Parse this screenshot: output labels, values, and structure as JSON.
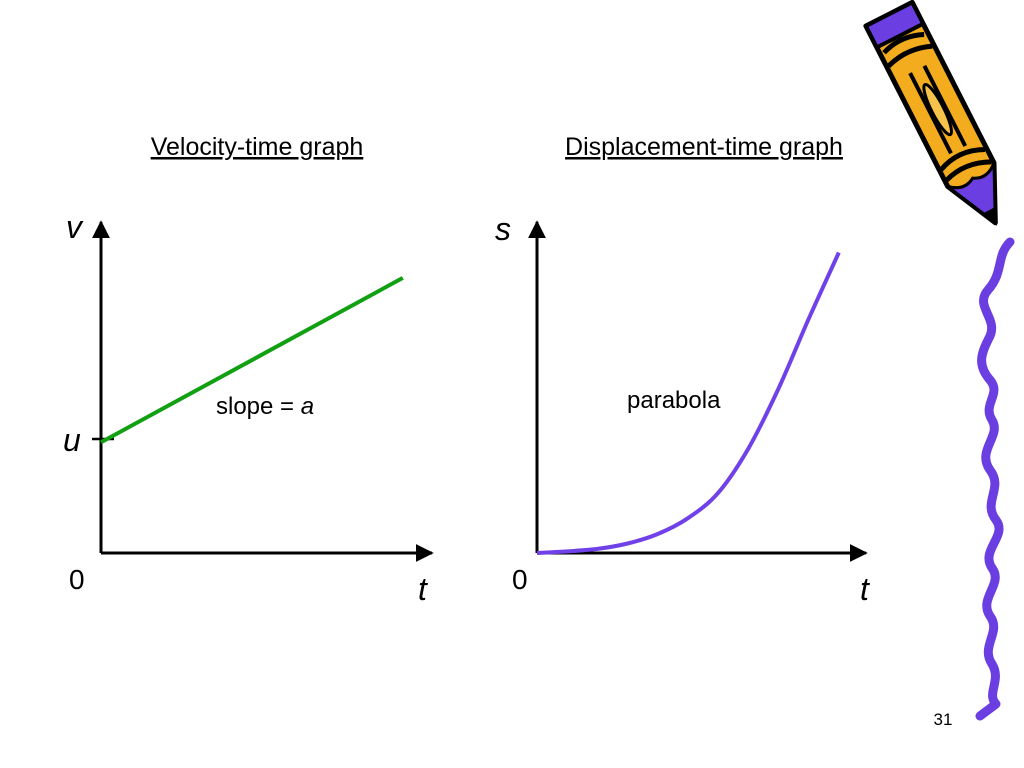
{
  "slide": {
    "page_number": "31",
    "colors": {
      "velocity_line": "#11a011",
      "displacement_curve": "#7040e8",
      "axis": "#000000",
      "pencil_body": "#f2ac1e",
      "pencil_trim": "#6a3ee0",
      "squiggle": "#6a3ee0"
    },
    "decorations": [
      "pencil-icon",
      "squiggle-border"
    ]
  },
  "chart_data": [
    {
      "type": "line",
      "title": "Velocity-time graph",
      "xlabel": "t",
      "ylabel": "v",
      "origin_label": "0",
      "y_marker_label": "u",
      "annotation": {
        "text_prefix": "slope = ",
        "text_var": "a"
      },
      "x": [
        0,
        1
      ],
      "series": [
        {
          "values": [
            0.35,
            0.87
          ]
        }
      ],
      "xlim": [
        0,
        1.1
      ],
      "ylim": [
        0,
        1.05
      ]
    },
    {
      "type": "line",
      "title": "Displacement-time graph",
      "xlabel": "t",
      "ylabel": "s",
      "origin_label": "0",
      "annotation": {
        "text": "parabola"
      },
      "x": [
        0,
        0.1,
        0.2,
        0.3,
        0.4,
        0.5,
        0.6,
        0.7,
        0.8,
        0.9,
        1.0
      ],
      "series": [
        {
          "values": [
            0.0,
            0.005,
            0.013,
            0.03,
            0.06,
            0.11,
            0.19,
            0.33,
            0.52,
            0.74,
            0.95
          ]
        }
      ],
      "xlim": [
        0,
        1.1
      ],
      "ylim": [
        0,
        1.05
      ]
    }
  ]
}
